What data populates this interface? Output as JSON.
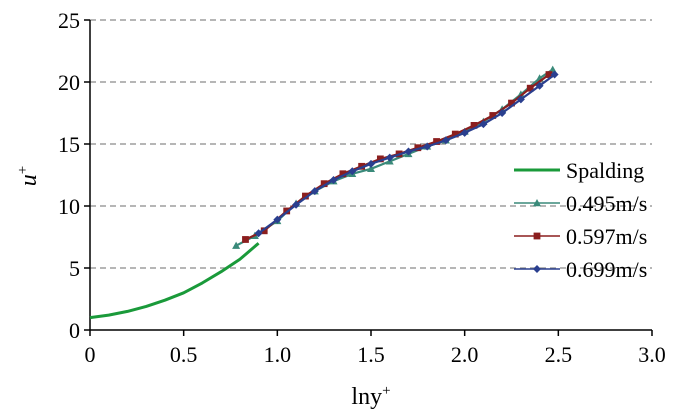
{
  "chart_data": {
    "type": "line",
    "xlabel": "lny",
    "xlabel_sup": "+",
    "ylabel": "u",
    "ylabel_sup": "+",
    "xlim": [
      0,
      3.0
    ],
    "ylim": [
      0,
      25
    ],
    "x_ticks": [
      0,
      0.5,
      1.0,
      1.5,
      2.0,
      2.5,
      3.0
    ],
    "x_tick_labels": [
      "0",
      "0.5",
      "1.0",
      "1.5",
      "2.0",
      "2.5",
      "3.0"
    ],
    "y_ticks": [
      0,
      5,
      10,
      15,
      20,
      25
    ],
    "y_tick_labels": [
      "0",
      "5",
      "10",
      "15",
      "20",
      "25"
    ],
    "grid": "horizontal-dashed",
    "legend_position": "right",
    "series": [
      {
        "name": "Spalding",
        "color": "#1a9a3a",
        "marker": "none",
        "x": [
          0,
          0.1,
          0.2,
          0.3,
          0.4,
          0.5,
          0.6,
          0.7,
          0.8,
          0.9
        ],
        "y": [
          1.0,
          1.2,
          1.5,
          1.9,
          2.4,
          3.0,
          3.8,
          4.7,
          5.7,
          7.0
        ]
      },
      {
        "name": "0.495m/s",
        "color": "#3a8a7a",
        "marker": "triangle",
        "x": [
          0.78,
          0.88,
          1.0,
          1.1,
          1.2,
          1.3,
          1.4,
          1.5,
          1.6,
          1.7,
          1.8,
          1.9,
          2.0,
          2.1,
          2.2,
          2.3,
          2.4,
          2.47
        ],
        "y": [
          6.8,
          7.6,
          8.8,
          10.2,
          11.2,
          12.0,
          12.6,
          13.0,
          13.6,
          14.2,
          14.8,
          15.3,
          16.0,
          16.8,
          17.8,
          19.0,
          20.3,
          21.0
        ]
      },
      {
        "name": "0.597m/s",
        "color": "#8b1e1e",
        "marker": "square",
        "x": [
          0.83,
          0.93,
          1.05,
          1.15,
          1.25,
          1.35,
          1.45,
          1.55,
          1.65,
          1.75,
          1.85,
          1.95,
          2.05,
          2.15,
          2.25,
          2.35,
          2.45
        ],
        "y": [
          7.3,
          8.0,
          9.6,
          10.8,
          11.8,
          12.6,
          13.2,
          13.8,
          14.2,
          14.7,
          15.2,
          15.8,
          16.5,
          17.3,
          18.3,
          19.5,
          20.6
        ]
      },
      {
        "name": "0.699m/s",
        "color": "#2a3f8f",
        "marker": "diamond",
        "x": [
          0.9,
          1.0,
          1.1,
          1.2,
          1.3,
          1.4,
          1.5,
          1.6,
          1.7,
          1.8,
          1.9,
          2.0,
          2.1,
          2.2,
          2.3,
          2.4,
          2.48
        ],
        "y": [
          7.8,
          8.9,
          10.1,
          11.2,
          12.1,
          12.8,
          13.4,
          13.9,
          14.4,
          14.8,
          15.3,
          15.9,
          16.6,
          17.5,
          18.6,
          19.7,
          20.6
        ]
      }
    ]
  }
}
